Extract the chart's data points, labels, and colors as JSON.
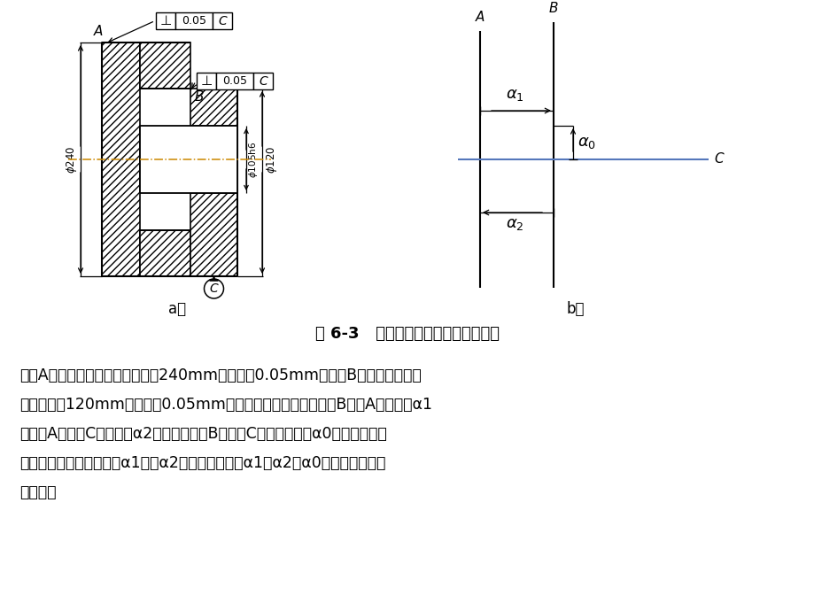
{
  "title": "图 6-3   拖拉机制动器轴承套结构简图",
  "label_a": "a）",
  "label_b": "b）",
  "body_text_lines": [
    "端面A对轴心的垂直度误差在直径240mm处不大于0.05mm，端面B对轴线的垂直度",
    "误差在直径120mm处不大于0.05mm。在加工过程中，直接保证B面对A面平行度α1",
    "和端面A对基准C的垂直度α2的要求，端面B对基准C的垂直度要求α0是在加工过程",
    "中间接保证的，它取决于α1、和α2的大小，因此，α1、α2和α0组成了位置公差",
    "尺寸链。"
  ],
  "bg_color": "#ffffff",
  "line_color": "#000000",
  "centerline_color": "#cc8800",
  "blue_line_color": "#5577bb"
}
